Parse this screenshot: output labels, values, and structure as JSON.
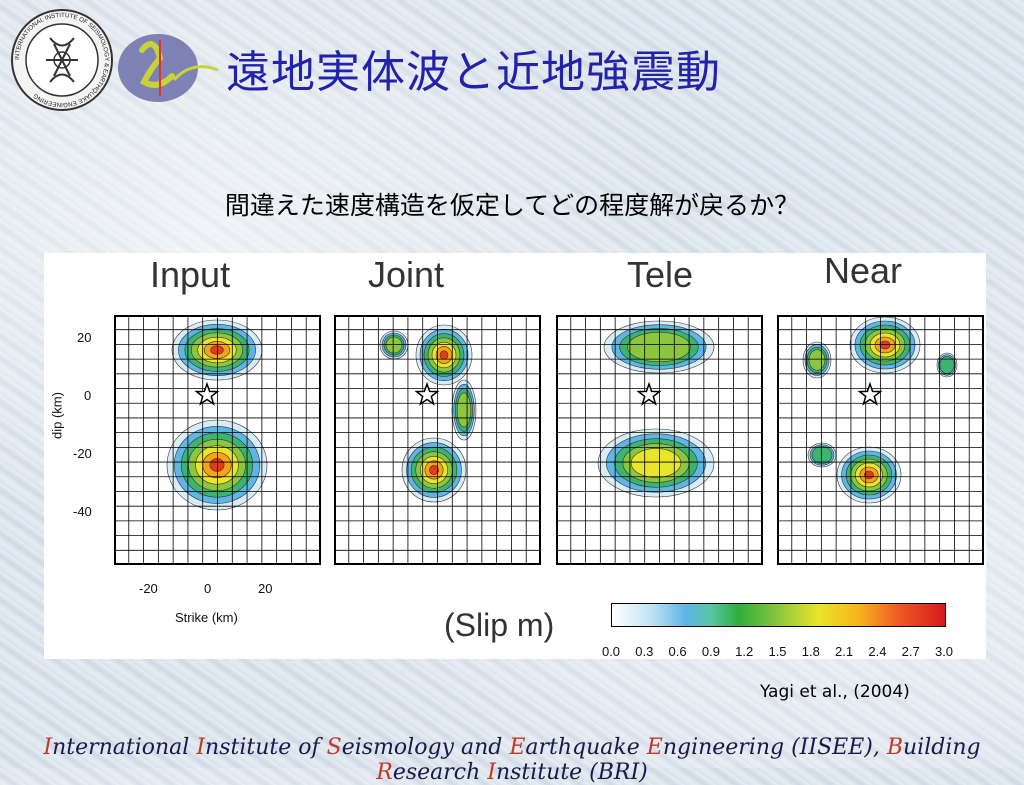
{
  "header": {
    "seal_text": "INTERNATIONAL INSTITUTE OF SEISMOLOGY & EARTHQUAKE ENGINEERING",
    "title": "遠地実体波と近地強震動"
  },
  "subtitle": "間違えた速度構造を仮定してどの程度解が戻るか？",
  "figure": {
    "panels": [
      {
        "title": "Input"
      },
      {
        "title": "Joint"
      },
      {
        "title": "Tele"
      },
      {
        "title": "Near"
      }
    ],
    "y_axis": {
      "label": "dip (km)",
      "ticks": [
        "20",
        "0",
        "-20",
        "-40"
      ]
    },
    "x_axis": {
      "label": "Strike (km)",
      "ticks": [
        "-20",
        "0",
        "20"
      ]
    },
    "colorbar": {
      "label": "(Slip m)",
      "ticks": [
        "0.0",
        "0.3",
        "0.6",
        "0.9",
        "1.2",
        "1.5",
        "1.8",
        "2.1",
        "2.4",
        "2.7",
        "3.0"
      ]
    }
  },
  "citation": "Yagi et al., (2004)",
  "footer": {
    "text_parts": [
      {
        "t": "I",
        "red": true
      },
      {
        "t": "nternational ",
        "red": false
      },
      {
        "t": "I",
        "red": true
      },
      {
        "t": "nstitute of ",
        "red": false
      },
      {
        "t": "S",
        "red": true
      },
      {
        "t": "eismology and ",
        "red": false
      },
      {
        "t": "E",
        "red": true
      },
      {
        "t": "arthquake ",
        "red": false
      },
      {
        "t": "E",
        "red": true
      },
      {
        "t": "ngineering (IISEE), ",
        "red": false
      },
      {
        "t": "B",
        "red": true
      },
      {
        "t": "uilding ",
        "red": false
      },
      {
        "t": "R",
        "red": true
      },
      {
        "t": "esearch ",
        "red": false
      },
      {
        "t": "I",
        "red": true
      },
      {
        "t": "nstitute (BRI)",
        "red": false
      }
    ]
  },
  "colors": {
    "title": "#2222aa",
    "red_accent": "#c0392b"
  }
}
